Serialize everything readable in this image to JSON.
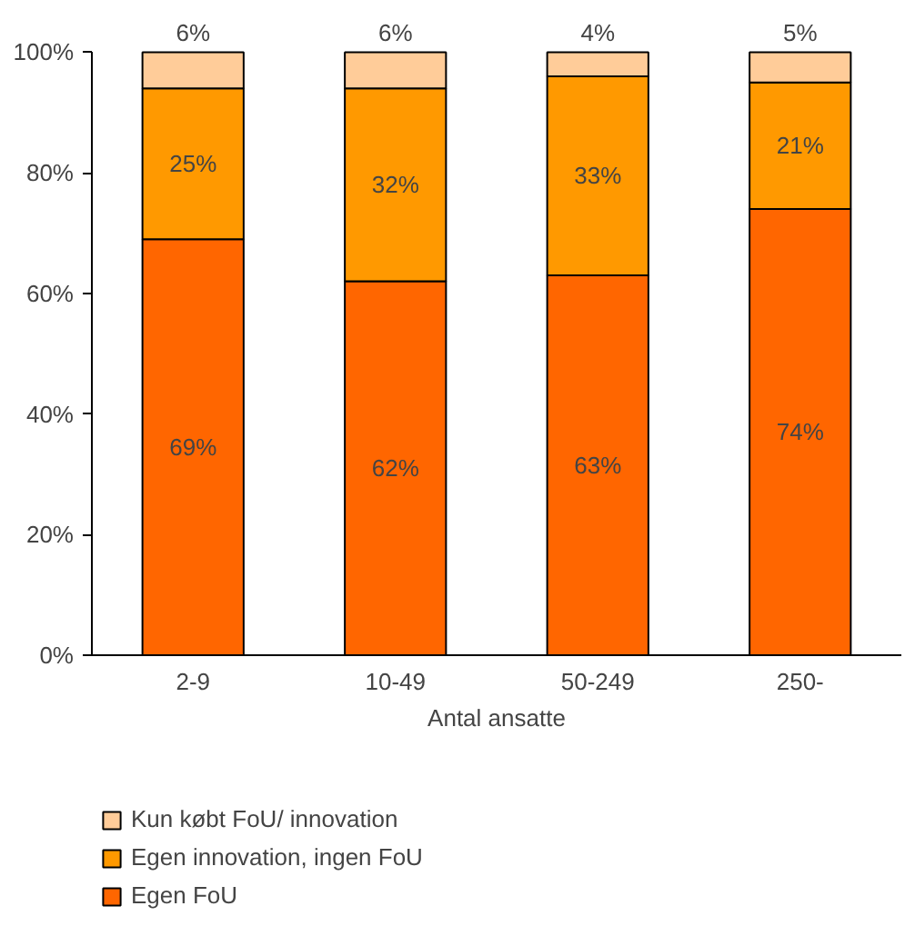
{
  "chart_data": {
    "type": "bar",
    "stacked": true,
    "xlabel": "Antal ansatte",
    "categories": [
      "2-9",
      "10-49",
      "50-249",
      "250-"
    ],
    "series": [
      {
        "name": "Egen FoU",
        "color": "#ff6600",
        "values": [
          69,
          62,
          63,
          74
        ],
        "value_labels": [
          "69%",
          "62%",
          "63%",
          "74%"
        ]
      },
      {
        "name": "Egen innovation, ingen FoU",
        "color": "#ff9900",
        "values": [
          25,
          32,
          33,
          21
        ],
        "value_labels": [
          "25%",
          "32%",
          "33%",
          "21%"
        ]
      },
      {
        "name": "Kun købt FoU/ innovation",
        "color": "#ffcc99",
        "values": [
          6,
          6,
          4,
          5
        ],
        "value_labels": [
          "6%",
          "6%",
          "4%",
          "5%"
        ]
      }
    ],
    "ylim": [
      0,
      100
    ],
    "yticks": [
      {
        "value": 0,
        "label": "0%"
      },
      {
        "value": 20,
        "label": "20%"
      },
      {
        "value": 40,
        "label": "40%"
      },
      {
        "value": 60,
        "label": "60%"
      },
      {
        "value": 80,
        "label": "80%"
      },
      {
        "value": 100,
        "label": "100%"
      }
    ],
    "grid": false,
    "legend": "bottom"
  }
}
